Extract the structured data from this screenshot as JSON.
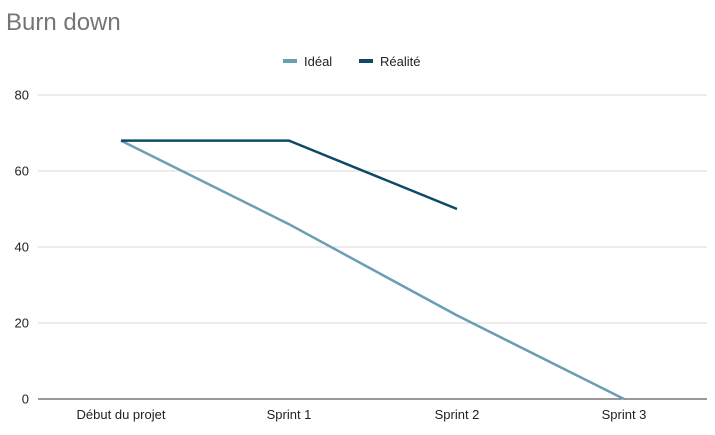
{
  "chart_data": {
    "type": "line",
    "title": "Burn down",
    "xlabel": "",
    "ylabel": "",
    "categories": [
      "Début du projet",
      "Sprint 1",
      "Sprint 2",
      "Sprint 3"
    ],
    "yticks": [
      "0",
      "20",
      "40",
      "60",
      "80"
    ],
    "ylim": [
      0,
      80
    ],
    "grid": true,
    "legend_position": "top-center",
    "series": [
      {
        "name": "Idéal",
        "color": "#6b9db5",
        "values": [
          68,
          46,
          22,
          0
        ]
      },
      {
        "name": "Réalité",
        "color": "#0d4a66",
        "values": [
          68,
          68,
          50,
          null
        ]
      }
    ]
  }
}
